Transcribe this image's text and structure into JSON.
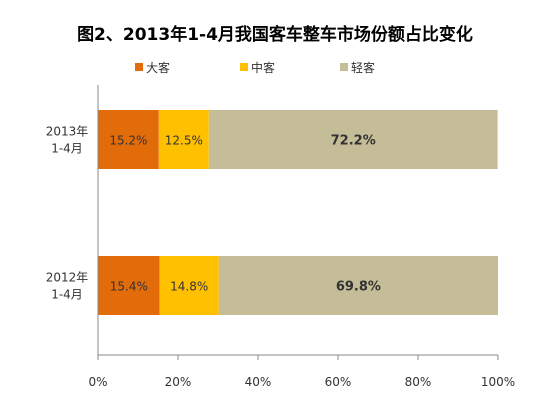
{
  "chart_data": {
    "type": "bar",
    "orientation": "horizontal",
    "stacked": "percent",
    "title": "图2、2013年1-4月我国客车整车市场份额占比变化",
    "categories": [
      {
        "line1": "2013年",
        "line2": "1-4月"
      },
      {
        "line1": "2012年",
        "line2": "1-4月"
      }
    ],
    "series": [
      {
        "name": "大客",
        "color": "#E36C0A",
        "values": [
          15.2,
          15.4
        ]
      },
      {
        "name": "中客",
        "color": "#FFC000",
        "values": [
          12.5,
          14.8
        ]
      },
      {
        "name": "轻客",
        "color": "#C4BD97",
        "values": [
          72.2,
          69.8
        ]
      }
    ],
    "data_labels": [
      [
        "15.2%",
        "12.5%",
        "72.2%"
      ],
      [
        "15.4%",
        "14.8%",
        "69.8%"
      ]
    ],
    "x_ticks": [
      "0%",
      "20%",
      "40%",
      "60%",
      "80%",
      "100%"
    ],
    "xlim": [
      0,
      100
    ],
    "legend_position": "top",
    "grid": false
  }
}
